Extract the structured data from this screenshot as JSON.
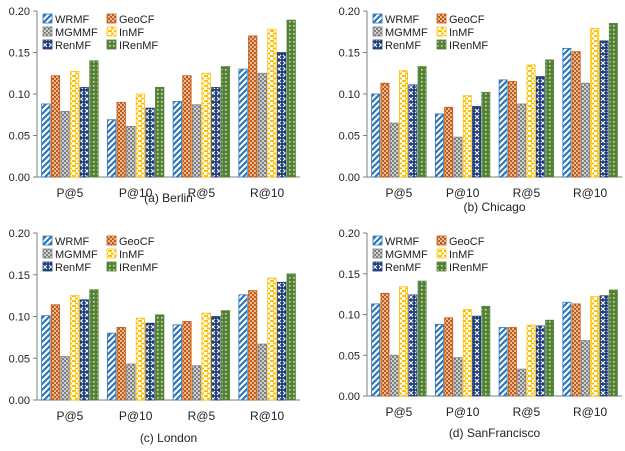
{
  "chart_data": [
    {
      "type": "bar",
      "caption": "(a) Berlin",
      "categories": [
        "P@5",
        "P@10",
        "R@5",
        "R@10"
      ],
      "ylim": [
        0,
        0.2
      ],
      "yticks": [
        "0.00",
        "0.05",
        "0.10",
        "0.15",
        "0.20"
      ],
      "grid": false,
      "legend_position": "top-left",
      "series": [
        {
          "name": "WRMF",
          "values": [
            0.088,
            0.069,
            0.091,
            0.13
          ]
        },
        {
          "name": "GeoCF",
          "values": [
            0.122,
            0.09,
            0.122,
            0.17
          ]
        },
        {
          "name": "MGMMF",
          "values": [
            0.079,
            0.061,
            0.087,
            0.125
          ]
        },
        {
          "name": "InMF",
          "values": [
            0.127,
            0.1,
            0.125,
            0.178
          ]
        },
        {
          "name": "RenMF",
          "values": [
            0.108,
            0.083,
            0.108,
            0.15
          ]
        },
        {
          "name": "IRenMF",
          "values": [
            0.14,
            0.108,
            0.133,
            0.189
          ]
        }
      ]
    },
    {
      "type": "bar",
      "caption": "(b) Chicago",
      "categories": [
        "P@5",
        "P@10",
        "R@5",
        "R@10"
      ],
      "ylim": [
        0,
        0.2
      ],
      "yticks": [
        "0.00",
        "0.05",
        "0.10",
        "0.15",
        "0.20"
      ],
      "grid": false,
      "legend_position": "top-left",
      "series": [
        {
          "name": "WRMF",
          "values": [
            0.1,
            0.076,
            0.117,
            0.155
          ]
        },
        {
          "name": "GeoCF",
          "values": [
            0.113,
            0.084,
            0.115,
            0.151
          ]
        },
        {
          "name": "MGMMF",
          "values": [
            0.065,
            0.048,
            0.088,
            0.113
          ]
        },
        {
          "name": "InMF",
          "values": [
            0.128,
            0.098,
            0.135,
            0.179
          ]
        },
        {
          "name": "RenMF",
          "values": [
            0.111,
            0.085,
            0.121,
            0.164
          ]
        },
        {
          "name": "IRenMF",
          "values": [
            0.133,
            0.102,
            0.141,
            0.185
          ]
        }
      ]
    },
    {
      "type": "bar",
      "caption": "(c) London",
      "categories": [
        "P@5",
        "P@10",
        "R@5",
        "R@10"
      ],
      "ylim": [
        0,
        0.2
      ],
      "yticks": [
        "0.00",
        "0.05",
        "0.10",
        "0.15",
        "0.20"
      ],
      "grid": false,
      "legend_position": "top-left",
      "series": [
        {
          "name": "WRMF",
          "values": [
            0.101,
            0.08,
            0.09,
            0.126
          ]
        },
        {
          "name": "GeoCF",
          "values": [
            0.114,
            0.087,
            0.094,
            0.131
          ]
        },
        {
          "name": "MGMMF",
          "values": [
            0.052,
            0.043,
            0.041,
            0.067
          ]
        },
        {
          "name": "InMF",
          "values": [
            0.125,
            0.098,
            0.104,
            0.146
          ]
        },
        {
          "name": "RenMF",
          "values": [
            0.12,
            0.092,
            0.1,
            0.141
          ]
        },
        {
          "name": "IRenMF",
          "values": [
            0.132,
            0.102,
            0.107,
            0.151
          ]
        }
      ]
    },
    {
      "type": "bar",
      "caption": "(d) SanFrancisco",
      "categories": [
        "P@5",
        "P@10",
        "R@5",
        "R@10"
      ],
      "ylim": [
        0,
        0.2
      ],
      "yticks": [
        "0.00",
        "0.05",
        "0.10",
        "0.15",
        "0.20"
      ],
      "grid": false,
      "legend_position": "top-left",
      "series": [
        {
          "name": "WRMF",
          "values": [
            0.113,
            0.088,
            0.084,
            0.115
          ]
        },
        {
          "name": "GeoCF",
          "values": [
            0.126,
            0.096,
            0.084,
            0.113
          ]
        },
        {
          "name": "MGMMF",
          "values": [
            0.05,
            0.047,
            0.033,
            0.068
          ]
        },
        {
          "name": "InMF",
          "values": [
            0.134,
            0.106,
            0.087,
            0.122
          ]
        },
        {
          "name": "RenMF",
          "values": [
            0.124,
            0.098,
            0.086,
            0.123
          ]
        },
        {
          "name": "IRenMF",
          "values": [
            0.141,
            0.11,
            0.093,
            0.13
          ]
        }
      ]
    }
  ],
  "style": {
    "series_colors": [
      "#2e75b6",
      "#c55a11",
      "#7f7f7f",
      "#ffc000",
      "#1f3d7a",
      "#548235"
    ],
    "series_patterns": [
      "diagonal-stripes",
      "dots",
      "checker",
      "horizontal-dashes",
      "crosses",
      "grid"
    ],
    "axis_color": "#7f7f7f",
    "text_color": "#222222"
  }
}
